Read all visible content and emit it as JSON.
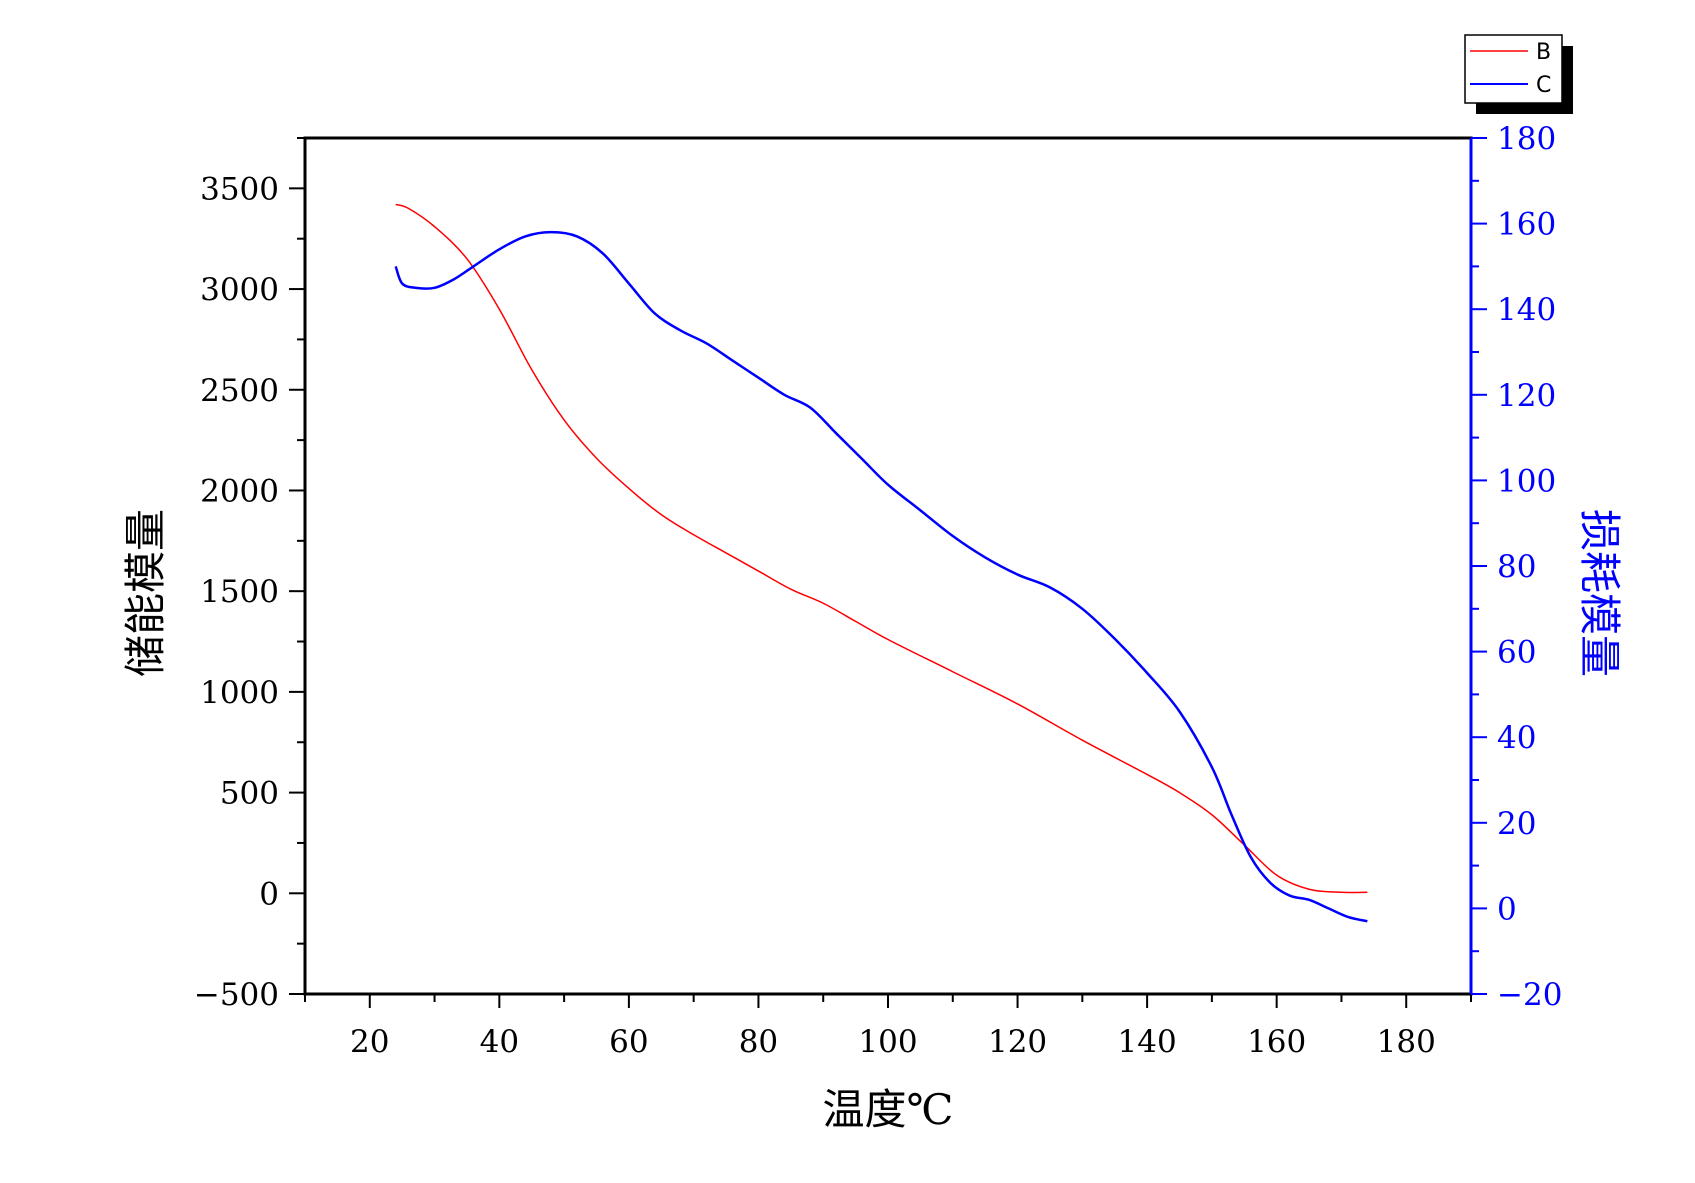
{
  "chart_data": {
    "type": "line",
    "xlabel": "温度℃",
    "ylabel_left": "储能模量",
    "ylabel_right": "损耗模量",
    "xlim": [
      10,
      190
    ],
    "ylim_left": [
      -500,
      3750
    ],
    "ylim_right": [
      -20,
      180
    ],
    "x_ticks": [
      20,
      40,
      60,
      80,
      100,
      120,
      140,
      160,
      180
    ],
    "y_left_ticks": [
      -500,
      0,
      500,
      1000,
      1500,
      2000,
      2500,
      3000,
      3500
    ],
    "y_right_ticks": [
      -20,
      0,
      20,
      40,
      60,
      80,
      100,
      120,
      140,
      160,
      180
    ],
    "x_tick_labels": [
      "20",
      "40",
      "60",
      "80",
      "100",
      "120",
      "140",
      "160",
      "180"
    ],
    "y_left_tick_labels": [
      "−500",
      "0",
      "500",
      "1000",
      "1500",
      "2000",
      "2500",
      "3000",
      "3500"
    ],
    "y_right_tick_labels": [
      "−20",
      "0",
      "20",
      "40",
      "60",
      "80",
      "100",
      "120",
      "140",
      "160",
      "180"
    ],
    "grid": false,
    "legend_position": "top-right, outside plot area",
    "series": [
      {
        "name": "B",
        "axis": "left",
        "color": "#ff0000",
        "x": [
          24,
          26,
          30,
          35,
          40,
          45,
          50,
          55,
          60,
          65,
          70,
          75,
          80,
          85,
          90,
          95,
          100,
          110,
          120,
          130,
          140,
          145,
          150,
          155,
          160,
          165,
          170,
          174
        ],
        "y": [
          3420,
          3400,
          3310,
          3150,
          2900,
          2600,
          2350,
          2160,
          2010,
          1880,
          1780,
          1690,
          1600,
          1510,
          1440,
          1350,
          1260,
          1100,
          940,
          760,
          590,
          500,
          390,
          240,
          90,
          20,
          5,
          5
        ]
      },
      {
        "name": "C",
        "axis": "right",
        "color": "#0000ff",
        "x": [
          24,
          25,
          27,
          30,
          33,
          36,
          40,
          44,
          48,
          52,
          56,
          60,
          64,
          68,
          72,
          76,
          80,
          84,
          88,
          92,
          96,
          100,
          105,
          110,
          115,
          120,
          125,
          130,
          135,
          140,
          145,
          150,
          153,
          156,
          159,
          162,
          165,
          168,
          171,
          174
        ],
        "y": [
          150,
          146,
          145,
          145,
          147,
          150,
          154,
          157,
          158,
          157,
          153,
          146,
          139,
          135,
          132,
          128,
          124,
          120,
          117,
          111,
          105,
          99,
          93,
          87,
          82,
          78,
          75,
          70,
          63,
          55,
          46,
          33,
          22,
          12,
          6,
          3,
          2,
          0,
          -2,
          -3
        ]
      }
    ]
  }
}
